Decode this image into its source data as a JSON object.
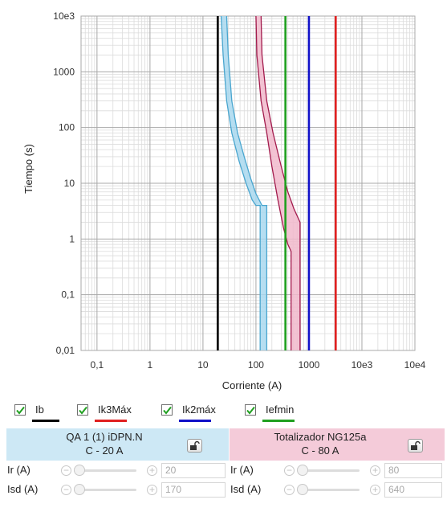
{
  "chart_data": {
    "type": "line",
    "xlabel": "Corriente (A)",
    "ylabel": "Tiempo (s)",
    "x_scale": "log",
    "y_scale": "log",
    "xlim": [
      0.05,
      10000
    ],
    "ylim": [
      0.01,
      10000
    ],
    "x_ticks": [
      {
        "value": 0.1,
        "label": "0,1"
      },
      {
        "value": 1,
        "label": "1"
      },
      {
        "value": 10,
        "label": "10"
      },
      {
        "value": 100,
        "label": "100"
      },
      {
        "value": 1000,
        "label": "1000"
      },
      {
        "value": 10000,
        "label": "10e3"
      },
      {
        "value": 100000,
        "label": "10e4"
      }
    ],
    "y_ticks": [
      {
        "value": 0.01,
        "label": "0,01"
      },
      {
        "value": 0.1,
        "label": "0,1"
      },
      {
        "value": 1,
        "label": "1"
      },
      {
        "value": 10,
        "label": "10"
      },
      {
        "value": 100,
        "label": "100"
      },
      {
        "value": 1000,
        "label": "1000"
      },
      {
        "value": 10000,
        "label": "10e3"
      }
    ],
    "grid": true,
    "vertical_lines": [
      {
        "key": "ib",
        "x": 19,
        "color": "#000000"
      },
      {
        "key": "ik3max",
        "x": 3200,
        "color": "#e02020"
      },
      {
        "key": "ik2max",
        "x": 1000,
        "color": "#1010c8"
      },
      {
        "key": "iefmin",
        "x": 360,
        "color": "#20a020"
      }
    ],
    "bands": [
      {
        "key": "qa1",
        "fill": "#a9d8ef",
        "stroke": "#4aa6cf",
        "upper": [
          [
            28,
            10000
          ],
          [
            30,
            2000
          ],
          [
            35,
            300
          ],
          [
            45,
            80
          ],
          [
            60,
            30
          ],
          [
            80,
            12
          ],
          [
            100,
            6.5
          ],
          [
            130,
            4
          ],
          [
            160,
            4
          ],
          [
            160,
            0.01
          ]
        ],
        "lower": [
          [
            22,
            10000
          ],
          [
            24,
            2000
          ],
          [
            28,
            300
          ],
          [
            35,
            80
          ],
          [
            48,
            25
          ],
          [
            65,
            10
          ],
          [
            85,
            5
          ],
          [
            100,
            4
          ],
          [
            120,
            4
          ],
          [
            120,
            0.01
          ]
        ]
      },
      {
        "key": "ng125",
        "fill": "#f1b8cb",
        "stroke": "#a21a4c",
        "upper": [
          [
            125,
            10000
          ],
          [
            130,
            2000
          ],
          [
            160,
            300
          ],
          [
            210,
            80
          ],
          [
            300,
            20
          ],
          [
            400,
            7
          ],
          [
            520,
            3.5
          ],
          [
            680,
            2
          ],
          [
            680,
            0.01
          ]
        ],
        "lower": [
          [
            100,
            10000
          ],
          [
            104,
            2000
          ],
          [
            125,
            300
          ],
          [
            160,
            80
          ],
          [
            200,
            20
          ],
          [
            260,
            5
          ],
          [
            330,
            1.6
          ],
          [
            400,
            0.8
          ],
          [
            460,
            0.6
          ],
          [
            460,
            0.01
          ]
        ]
      }
    ]
  },
  "legend": [
    {
      "key": "ib",
      "label": "Ib",
      "checked": true,
      "color": "#000000"
    },
    {
      "key": "ik3max",
      "label": "Ik3Máx",
      "checked": true,
      "color": "#e02020"
    },
    {
      "key": "ik2max",
      "label": "Ik2máx",
      "checked": true,
      "color": "#1010c8"
    },
    {
      "key": "iefmin",
      "label": "Iefmin",
      "checked": true,
      "color": "#20a020"
    }
  ],
  "panels": [
    {
      "title_line1": "QA 1 (1) iDPN.N",
      "title_line2": "C - 20 A",
      "color": "#cde8f5",
      "ir_label": "Ir (A)",
      "ir_value": "20",
      "ir_position": 0.0,
      "isd_label": "Isd (A)",
      "isd_value": "170",
      "isd_position": 0.0
    },
    {
      "title_line1": "Totalizador NG125a",
      "title_line2": "C - 80 A",
      "color": "#f4cbd9",
      "ir_label": "Ir (A)",
      "ir_value": "80",
      "ir_position": 0.0,
      "isd_label": "Isd (A)",
      "isd_value": "640",
      "isd_position": 0.0
    }
  ]
}
